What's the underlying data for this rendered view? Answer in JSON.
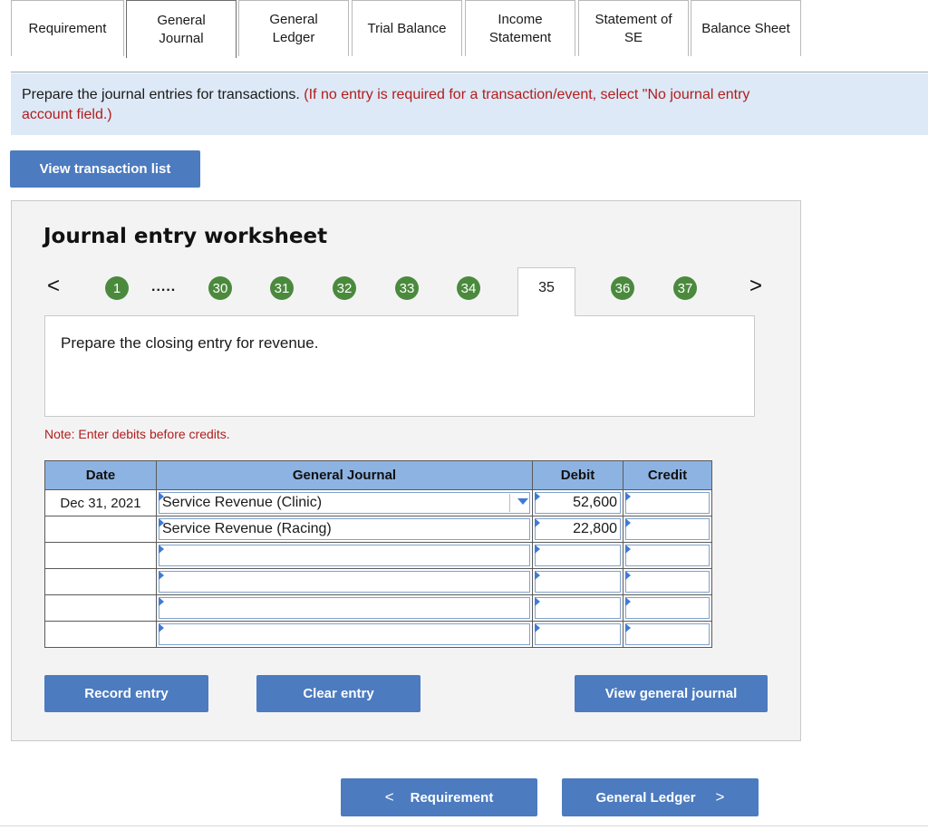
{
  "tabs": [
    {
      "label": "Requirement",
      "active": false
    },
    {
      "label": "General\nJournal",
      "active": true
    },
    {
      "label": "General\nLedger",
      "active": false
    },
    {
      "label": "Trial Balance",
      "active": false
    },
    {
      "label": "Income\nStatement",
      "active": false
    },
    {
      "label": "Statement of\nSE",
      "active": false
    },
    {
      "label": "Balance Sheet",
      "active": false
    }
  ],
  "banner": {
    "main_text": "Prepare the journal entries for transactions.",
    "red_text": "(If no entry is required for a transaction/event, select \"No journal entry",
    "red_text_line2": "account field.)"
  },
  "view_transactions_label": "View transaction list",
  "worksheet": {
    "title": "Journal entry worksheet",
    "prev_arrow": "<",
    "next_arrow": ">",
    "ellipsis": ".....",
    "pages": [
      "1",
      "30",
      "31",
      "32",
      "33",
      "34",
      "35",
      "36",
      "37"
    ],
    "current_page": "35",
    "question": "Prepare the closing entry for revenue.",
    "note": "Note: Enter debits before credits."
  },
  "journal": {
    "headers": {
      "date": "Date",
      "account": "General Journal",
      "debit": "Debit",
      "credit": "Credit"
    },
    "rows": [
      {
        "date": "Dec 31, 2021",
        "account": "Service Revenue (Clinic)",
        "debit": "52,600",
        "credit": ""
      },
      {
        "date": "",
        "account": "Service Revenue (Racing)",
        "debit": "22,800",
        "credit": ""
      },
      {
        "date": "",
        "account": "",
        "debit": "",
        "credit": ""
      },
      {
        "date": "",
        "account": "",
        "debit": "",
        "credit": ""
      },
      {
        "date": "",
        "account": "",
        "debit": "",
        "credit": ""
      },
      {
        "date": "",
        "account": "",
        "debit": "",
        "credit": ""
      }
    ]
  },
  "actions": {
    "record": "Record entry",
    "clear": "Clear entry",
    "view_journal": "View general journal"
  },
  "nav": {
    "prev_label": "Requirement",
    "prev_chevron": "<",
    "next_label": "General Ledger",
    "next_chevron": ">"
  },
  "colors": {
    "button_blue": "#4c7bbf",
    "banner_bg": "#dde9f6",
    "page_circle_green": "#4b8a3d",
    "table_header_blue": "#8db3e2",
    "instruction_red": "#b21d1d"
  }
}
